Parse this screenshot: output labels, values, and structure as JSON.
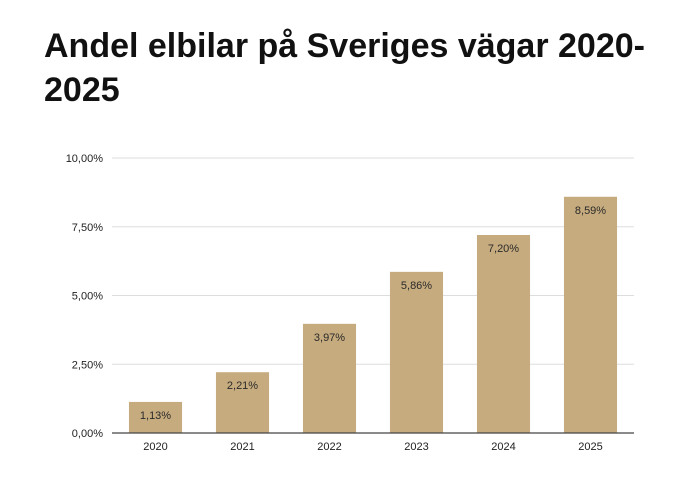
{
  "chart_data": {
    "type": "bar",
    "title": "Andel elbilar på Sveriges vägar 2020-2025",
    "xlabel": "",
    "ylabel": "",
    "categories": [
      "2020",
      "2021",
      "2022",
      "2023",
      "2024",
      "2025"
    ],
    "values": [
      1.13,
      2.21,
      3.97,
      5.86,
      7.2,
      8.59
    ],
    "data_labels": [
      "1,13%",
      "2,21%",
      "3,97%",
      "5,86%",
      "7,20%",
      "8,59%"
    ],
    "ylim": [
      0,
      10
    ],
    "yticks": [
      0,
      2.5,
      5,
      7.5,
      10
    ],
    "ytick_labels": [
      "0,00%",
      "2,50%",
      "5,00%",
      "7,50%",
      "10,00%"
    ],
    "grid": true,
    "legend": "none",
    "colors": {
      "bar": "#c6ab7e",
      "grid": "#dddddd",
      "axis": "#444444"
    }
  }
}
